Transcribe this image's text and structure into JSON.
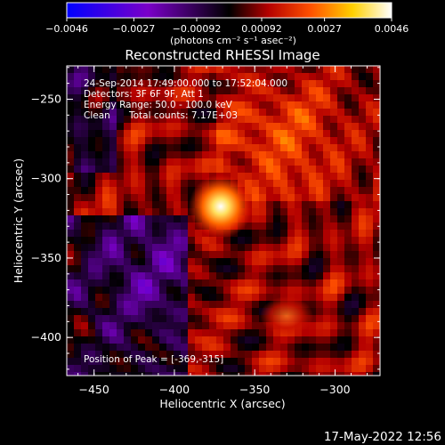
{
  "chart_data": {
    "type": "heatmap",
    "title": "Reconstructed RHESSI Image",
    "xlabel": "Heliocentric X (arcsec)",
    "ylabel": "Heliocentric Y (arcsec)",
    "xlim": [
      -467,
      -272
    ],
    "ylim": [
      -424,
      -229
    ],
    "x_ticks": [
      -450,
      -400,
      -350,
      -300
    ],
    "y_ticks": [
      -250,
      -300,
      -350,
      -400
    ],
    "colorbar": {
      "range": [
        -0.0046,
        0.0046
      ],
      "ticks": [
        "-0.0046",
        "-0.0027",
        "-0.00092",
        "0.00092",
        "0.0027",
        "0.0046"
      ],
      "unit_label": "(photons cm⁻² s⁻¹ asec⁻²)",
      "colors": [
        "#0000ff",
        "#7a00c8",
        "#000000",
        "#b40000",
        "#ff5000",
        "#ffd000",
        "#ffffff"
      ]
    },
    "peak": {
      "x": -369,
      "y": -315
    },
    "annotations": {
      "time_range": "24-Sep-2014 17:49:00.000 to 17:52:04.000",
      "detectors": "Detectors: 3F 6F 9F, Att 1",
      "energy_range": "Energy Range: 50.0 - 100.0 keV",
      "algorithm": "Clean",
      "total_counts": "Total counts: 7.17E+03",
      "peak_label": "Position of Peak = [-369,-315]"
    },
    "footer_timestamp": "17-May-2022 12:56"
  }
}
